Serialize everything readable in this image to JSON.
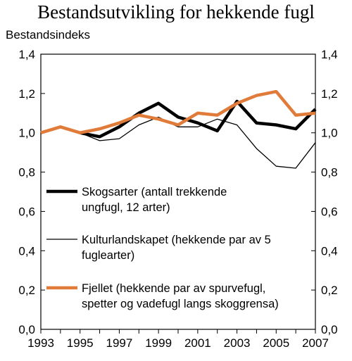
{
  "chart_data": {
    "type": "line",
    "title": "Bestandsutvikling for hekkende fugl",
    "ylabel": "Bestandsindeks",
    "xlabel": "",
    "ylim": [
      0,
      1.4
    ],
    "xlim": [
      1993,
      2007
    ],
    "yticks": [
      "0,0",
      "0,2",
      "0,4",
      "0,6",
      "0,8",
      "1,0",
      "1,2",
      "1,4"
    ],
    "xticks": [
      "1993",
      "1995",
      "1997",
      "1999",
      "2001",
      "2003",
      "2005",
      "2007"
    ],
    "grid": false,
    "legend_position": "middle-left, inside plot",
    "series": [
      {
        "name": "Skogsarter (antall trekkende ungfugl, 12 arter)",
        "legend_lines": [
          "Skogsarter (antall trekkende",
          "ungfugl, 12 arter)"
        ],
        "color": "#000000",
        "x": [
          1995,
          1996,
          1997,
          1998,
          1999,
          2000,
          2001,
          2002,
          2003,
          2004,
          2005,
          2006,
          2007
        ],
        "y": [
          1.0,
          0.98,
          1.03,
          1.1,
          1.15,
          1.08,
          1.05,
          1.01,
          1.16,
          1.05,
          1.04,
          1.02,
          1.12
        ]
      },
      {
        "name": "Kulturlandskapet (hekkende par av 5 fuglearter)",
        "legend_lines": [
          "Kulturlandskapet (hekkende par av 5",
          "fuglearter)"
        ],
        "color": "#000000",
        "x": [
          1995,
          1996,
          1997,
          1998,
          1999,
          2000,
          2001,
          2002,
          2003,
          2004,
          2005,
          2006,
          2007
        ],
        "y": [
          1.0,
          0.96,
          0.97,
          1.04,
          1.08,
          1.03,
          1.03,
          1.07,
          1.04,
          0.92,
          0.83,
          0.82,
          0.95
        ]
      },
      {
        "name": "Fjellet (hekkende par av spurvefugl, spetter og vadefugl langs skoggrensa)",
        "legend_lines": [
          "Fjellet (hekkende par av spurvefugl,",
          "spetter og vadefugl langs skoggrensa)"
        ],
        "color": "#e07b39",
        "x": [
          1993,
          1994,
          1995,
          1996,
          1997,
          1998,
          1999,
          2000,
          2001,
          2002,
          2003,
          2004,
          2005,
          2006,
          2007
        ],
        "y": [
          1.0,
          1.03,
          1.0,
          1.02,
          1.05,
          1.09,
          1.07,
          1.04,
          1.1,
          1.09,
          1.15,
          1.19,
          1.21,
          1.09,
          1.1
        ]
      }
    ]
  }
}
